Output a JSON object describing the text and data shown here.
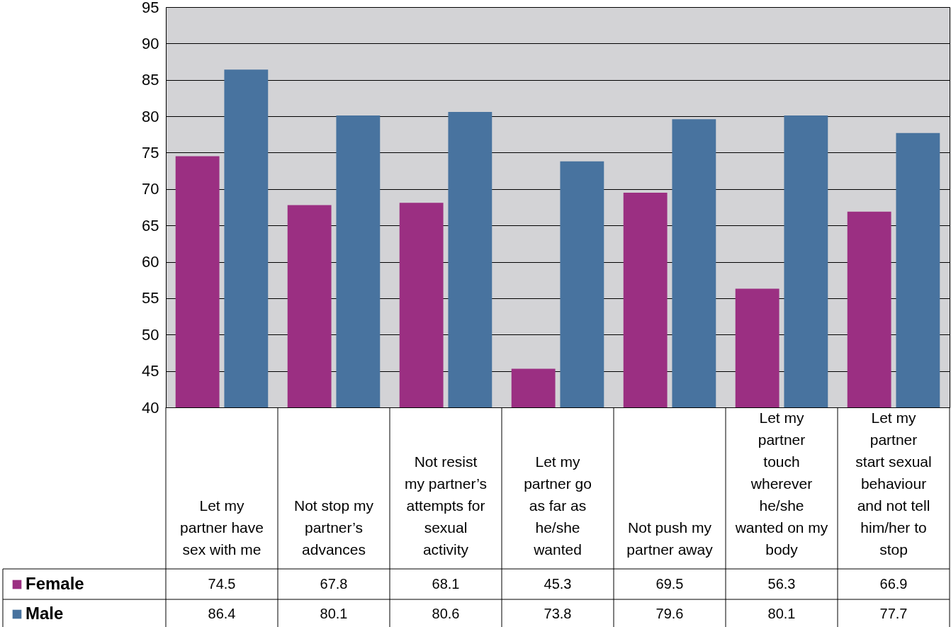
{
  "chart_data": {
    "type": "bar",
    "categories": [
      "Let my partner have sex with me",
      "Not stop my partner’s advances",
      "Not resist my partner’s attempts for sexual activity",
      "Let my partner go as far as he/she wanted",
      "Not push my partner away",
      "Let my partner touch wherever he/she wanted on my body",
      "Let my partner start sexual behaviour and not tell him/her to stop"
    ],
    "series": [
      {
        "name": "Female",
        "color": "#9b2f82",
        "values": [
          74.5,
          67.8,
          68.1,
          45.3,
          69.5,
          56.3,
          66.9
        ]
      },
      {
        "name": "Male",
        "color": "#48739f",
        "values": [
          86.4,
          80.1,
          80.6,
          73.8,
          79.6,
          80.1,
          77.7
        ]
      }
    ],
    "ylim": [
      40,
      95
    ],
    "yticks": [
      40,
      45,
      50,
      55,
      60,
      65,
      70,
      75,
      80,
      85,
      90,
      95
    ],
    "grid": "y",
    "legend": "bottom left",
    "data_labels": true
  }
}
